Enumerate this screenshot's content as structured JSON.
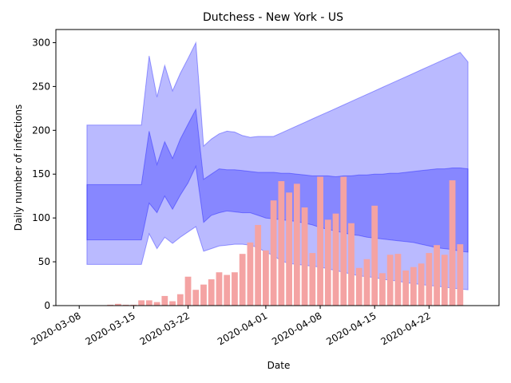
{
  "chart_data": {
    "type": "bar",
    "title": "Dutchess - New York - US",
    "xlabel": "Date",
    "ylabel": "Daily number of infections",
    "xlim": [
      "2020-03-05",
      "2020-05-01"
    ],
    "ylim": [
      0,
      315
    ],
    "grid": false,
    "legend": "none",
    "x_ticks": [
      "2020-03-08",
      "2020-03-15",
      "2020-03-22",
      "2020-04-01",
      "2020-04-08",
      "2020-04-15",
      "2020-04-22"
    ],
    "y_ticks": [
      0,
      50,
      100,
      150,
      200,
      250,
      300
    ],
    "bar_color": "#f4a3a3",
    "bars": {
      "dates": [
        "2020-03-09",
        "2020-03-10",
        "2020-03-11",
        "2020-03-12",
        "2020-03-13",
        "2020-03-14",
        "2020-03-15",
        "2020-03-16",
        "2020-03-17",
        "2020-03-18",
        "2020-03-19",
        "2020-03-20",
        "2020-03-21",
        "2020-03-22",
        "2020-03-23",
        "2020-03-24",
        "2020-03-25",
        "2020-03-26",
        "2020-03-27",
        "2020-03-28",
        "2020-03-29",
        "2020-03-30",
        "2020-03-31",
        "2020-04-01",
        "2020-04-02",
        "2020-04-03",
        "2020-04-04",
        "2020-04-05",
        "2020-04-06",
        "2020-04-07",
        "2020-04-08",
        "2020-04-09",
        "2020-04-10",
        "2020-04-11",
        "2020-04-12",
        "2020-04-13",
        "2020-04-14",
        "2020-04-15",
        "2020-04-16",
        "2020-04-17",
        "2020-04-18",
        "2020-04-19",
        "2020-04-20",
        "2020-04-21",
        "2020-04-22",
        "2020-04-23",
        "2020-04-24",
        "2020-04-25",
        "2020-04-26",
        "2020-04-27",
        "2020-04-28"
      ],
      "values": [
        0,
        0,
        0,
        1,
        2,
        1,
        1,
        6,
        6,
        4,
        11,
        5,
        13,
        33,
        18,
        24,
        30,
        38,
        35,
        38,
        59,
        72,
        92,
        63,
        120,
        142,
        129,
        139,
        112,
        60,
        147,
        98,
        105,
        147,
        94,
        43,
        53,
        114,
        37,
        58,
        59,
        40,
        44,
        48,
        60,
        69,
        58,
        143,
        70,
        0,
        0
      ]
    },
    "bands": [
      {
        "color": "#0000ff",
        "opacity": 0.27,
        "dates": [
          "2020-03-09",
          "2020-03-16",
          "2020-03-17",
          "2020-03-18",
          "2020-03-19",
          "2020-03-20",
          "2020-03-21",
          "2020-03-22",
          "2020-03-23",
          "2020-03-24",
          "2020-03-25",
          "2020-03-26",
          "2020-03-27",
          "2020-03-28",
          "2020-03-29",
          "2020-03-30",
          "2020-03-31",
          "2020-04-01",
          "2020-04-02",
          "2020-04-03",
          "2020-04-04",
          "2020-04-05",
          "2020-04-06",
          "2020-04-07",
          "2020-04-08",
          "2020-04-09",
          "2020-04-10",
          "2020-04-11",
          "2020-04-12",
          "2020-04-13",
          "2020-04-14",
          "2020-04-15",
          "2020-04-16",
          "2020-04-17",
          "2020-04-18",
          "2020-04-19",
          "2020-04-20",
          "2020-04-21",
          "2020-04-22",
          "2020-04-23",
          "2020-04-24",
          "2020-04-25",
          "2020-04-26",
          "2020-04-27"
        ],
        "upper": [
          206,
          206,
          285,
          238,
          274,
          245,
          265,
          282,
          300,
          182,
          190,
          196,
          199,
          198,
          194,
          192,
          193,
          193,
          193,
          197,
          201,
          205,
          209,
          213,
          217,
          221,
          225,
          229,
          233,
          237,
          241,
          245,
          249,
          253,
          257,
          261,
          265,
          269,
          273,
          277,
          281,
          285,
          289,
          278
        ],
        "lower": [
          47,
          47,
          82,
          65,
          78,
          71,
          78,
          84,
          90,
          62,
          65,
          68,
          69,
          70,
          70,
          69,
          66,
          61,
          57,
          51,
          48,
          47,
          46,
          45,
          44,
          42,
          40,
          38,
          36,
          34,
          33,
          32,
          30,
          29,
          28,
          26,
          25,
          24,
          23,
          22,
          21,
          20,
          19,
          18
        ]
      },
      {
        "color": "#0000ff",
        "opacity": 0.27,
        "dates": [
          "2020-03-09",
          "2020-03-16",
          "2020-03-17",
          "2020-03-18",
          "2020-03-19",
          "2020-03-20",
          "2020-03-21",
          "2020-03-22",
          "2020-03-23",
          "2020-03-24",
          "2020-03-25",
          "2020-03-26",
          "2020-03-27",
          "2020-03-28",
          "2020-03-29",
          "2020-03-30",
          "2020-03-31",
          "2020-04-01",
          "2020-04-02",
          "2020-04-03",
          "2020-04-04",
          "2020-04-05",
          "2020-04-06",
          "2020-04-07",
          "2020-04-08",
          "2020-04-09",
          "2020-04-10",
          "2020-04-11",
          "2020-04-12",
          "2020-04-13",
          "2020-04-14",
          "2020-04-15",
          "2020-04-16",
          "2020-04-17",
          "2020-04-18",
          "2020-04-19",
          "2020-04-20",
          "2020-04-21",
          "2020-04-22",
          "2020-04-23",
          "2020-04-24",
          "2020-04-25",
          "2020-04-26",
          "2020-04-27"
        ],
        "upper": [
          138,
          138,
          199,
          161,
          187,
          168,
          190,
          207,
          224,
          144,
          150,
          156,
          155,
          155,
          154,
          153,
          152,
          152,
          152,
          151,
          151,
          150,
          149,
          148,
          148,
          148,
          147,
          148,
          148,
          149,
          149,
          150,
          150,
          151,
          151,
          152,
          153,
          154,
          155,
          156,
          156,
          157,
          157,
          156
        ],
        "lower": [
          75,
          75,
          117,
          106,
          125,
          110,
          126,
          140,
          159,
          95,
          103,
          106,
          108,
          107,
          106,
          106,
          103,
          100,
          99,
          98,
          97,
          96,
          94,
          92,
          89,
          87,
          85,
          83,
          81,
          80,
          78,
          77,
          76,
          75,
          74,
          73,
          72,
          70,
          68,
          66,
          65,
          64,
          62,
          61
        ]
      }
    ]
  }
}
